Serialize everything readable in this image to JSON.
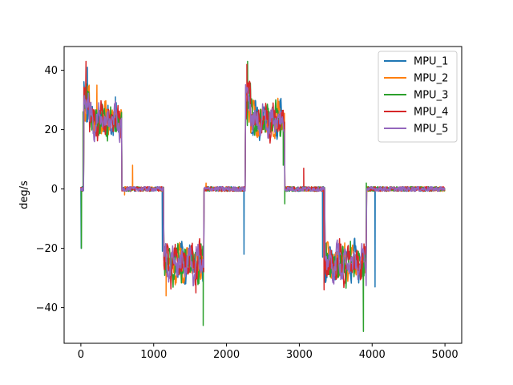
{
  "chart_data": {
    "type": "line",
    "title": "",
    "xlabel": "",
    "ylabel": "deg/s",
    "xlim": [
      -230,
      5230
    ],
    "ylim": [
      -52,
      48
    ],
    "xticks": [
      0,
      1000,
      2000,
      3000,
      4000,
      5000
    ],
    "yticks": [
      -40,
      -20,
      0,
      20,
      40
    ],
    "grid": false,
    "legend_position": "upper right",
    "series": [
      {
        "name": "MPU_1",
        "color": "#1f77b4"
      },
      {
        "name": "MPU_2",
        "color": "#ff7f0e"
      },
      {
        "name": "MPU_3",
        "color": "#2ca02c"
      },
      {
        "name": "MPU_4",
        "color": "#d62728"
      },
      {
        "name": "MPU_5",
        "color": "#9467bd"
      }
    ],
    "x_range": [
      0,
      5000
    ],
    "segments": [
      {
        "x0": 0,
        "x1": 40,
        "level": 0
      },
      {
        "x0": 40,
        "x1": 120,
        "level": 30
      },
      {
        "x0": 120,
        "x1": 560,
        "level": 23
      },
      {
        "x0": 560,
        "x1": 1140,
        "level": 0
      },
      {
        "x0": 1140,
        "x1": 1690,
        "level": -25
      },
      {
        "x0": 1690,
        "x1": 2260,
        "level": 0
      },
      {
        "x0": 2260,
        "x1": 2330,
        "level": 30
      },
      {
        "x0": 2330,
        "x1": 2800,
        "level": 23
      },
      {
        "x0": 2800,
        "x1": 3350,
        "level": 0
      },
      {
        "x0": 3350,
        "x1": 3920,
        "level": -25
      },
      {
        "x0": 3920,
        "x1": 5000,
        "level": 0
      }
    ],
    "spikes": [
      {
        "series": "MPU_1",
        "x": 5,
        "value": -20
      },
      {
        "series": "MPU_3",
        "x": 8,
        "value": -20
      },
      {
        "series": "MPU_3",
        "x": 30,
        "value": 26
      },
      {
        "series": "MPU_4",
        "x": 70,
        "value": 43
      },
      {
        "series": "MPU_1",
        "x": 90,
        "value": 41
      },
      {
        "series": "MPU_2",
        "x": 220,
        "value": 35
      },
      {
        "series": "MPU_1",
        "x": 475,
        "value": 31
      },
      {
        "series": "MPU_2",
        "x": 600,
        "value": -2
      },
      {
        "series": "MPU_2",
        "x": 710,
        "value": 8
      },
      {
        "series": "MPU_1",
        "x": 1120,
        "value": -21
      },
      {
        "series": "MPU_2",
        "x": 1170,
        "value": -36
      },
      {
        "series": "MPU_4",
        "x": 1580,
        "value": -35
      },
      {
        "series": "MPU_3",
        "x": 1680,
        "value": -46
      },
      {
        "series": "MPU_2",
        "x": 1720,
        "value": 2
      },
      {
        "series": "MPU_1",
        "x": 2240,
        "value": -22
      },
      {
        "series": "MPU_3",
        "x": 2290,
        "value": 43
      },
      {
        "series": "MPU_4",
        "x": 2280,
        "value": 42
      },
      {
        "series": "MPU_3",
        "x": 2780,
        "value": 8
      },
      {
        "series": "MPU_3",
        "x": 2800,
        "value": -5
      },
      {
        "series": "MPU_4",
        "x": 3060,
        "value": 7
      },
      {
        "series": "MPU_1",
        "x": 3320,
        "value": -23
      },
      {
        "series": "MPU_4",
        "x": 3340,
        "value": -34
      },
      {
        "series": "MPU_3",
        "x": 3880,
        "value": -48
      },
      {
        "series": "MPU_3",
        "x": 3920,
        "value": 2
      },
      {
        "series": "MPU_1",
        "x": 4040,
        "value": -33
      }
    ]
  }
}
